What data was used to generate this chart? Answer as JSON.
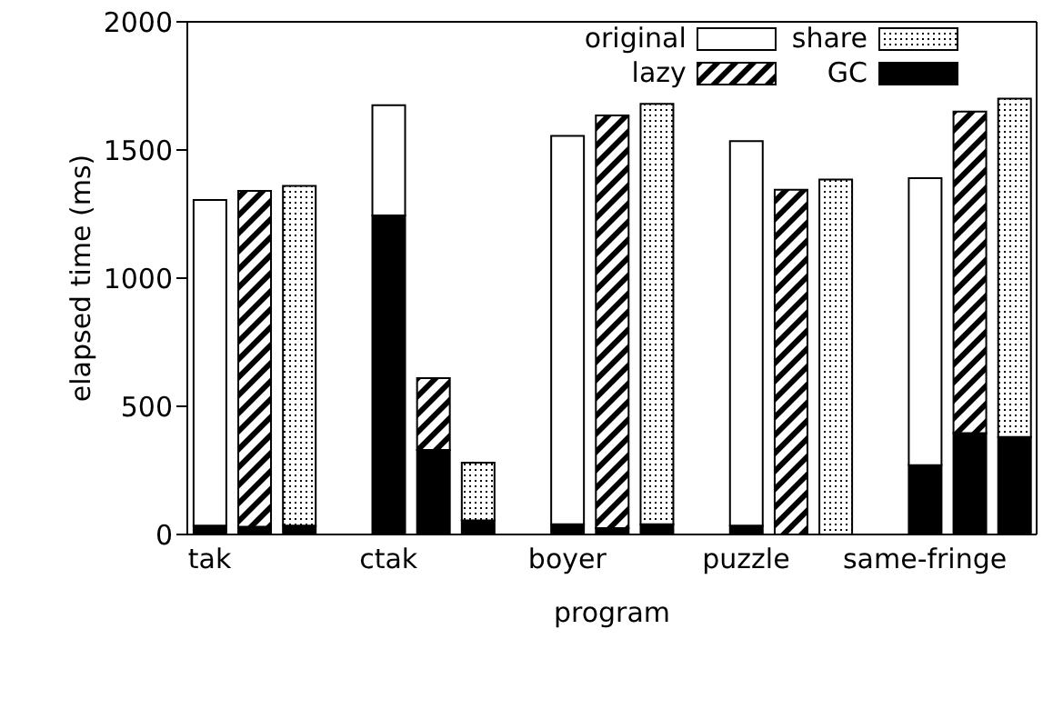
{
  "chart_data": {
    "type": "bar",
    "stacked": true,
    "xlabel": "program",
    "ylabel": "elapsed time (ms)",
    "categories": [
      "tak",
      null,
      null,
      null,
      "ctak",
      null,
      null,
      null,
      "boyer",
      null,
      null,
      null,
      "puzzle",
      null,
      null,
      null,
      "same-fringe",
      null,
      null
    ],
    "series": [
      {
        "name": "GC",
        "color": "#000000",
        "values": [
          35,
          30,
          35,
          null,
          1245,
          330,
          55,
          null,
          40,
          25,
          40,
          null,
          35,
          0,
          0,
          null,
          270,
          395,
          380
        ]
      },
      {
        "name": "original",
        "color": "#ffffff",
        "values": [
          1270,
          null,
          null,
          null,
          430,
          null,
          null,
          null,
          1515,
          null,
          null,
          null,
          1500,
          null,
          null,
          null,
          1120,
          null,
          null
        ]
      },
      {
        "name": "lazy",
        "color": "#000000",
        "values": [
          null,
          1310,
          null,
          null,
          null,
          280,
          null,
          null,
          null,
          1610,
          null,
          null,
          null,
          1345,
          null,
          null,
          null,
          1255,
          null
        ]
      },
      {
        "name": "share",
        "color": "#000000",
        "values": [
          null,
          null,
          1325,
          null,
          null,
          null,
          225,
          null,
          null,
          null,
          1640,
          null,
          null,
          null,
          1385,
          null,
          null,
          null,
          1320
        ]
      }
    ],
    "ylim": [
      0,
      2000
    ],
    "yticks": [
      0,
      500,
      1000,
      1500,
      2000
    ],
    "legend": "top right"
  }
}
